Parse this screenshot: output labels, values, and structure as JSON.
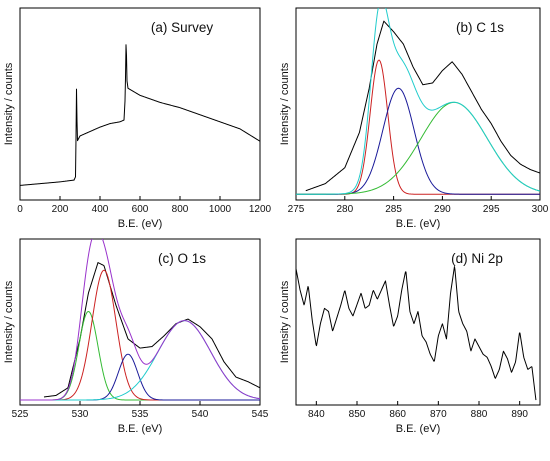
{
  "chart_data": [
    {
      "type": "line",
      "title": "(a) Survey",
      "xlabel": "B.E. (eV)",
      "ylabel": "Intensity / counts",
      "xlim": [
        0,
        1200
      ],
      "xticks": [
        0,
        200,
        400,
        600,
        800,
        1000,
        1200
      ],
      "ylim": [
        0,
        100
      ],
      "yticks_shown": false,
      "series": [
        {
          "color": "#000000",
          "points": [
            [
              0,
              5
            ],
            [
              100,
              6
            ],
            [
              200,
              7
            ],
            [
              270,
              8
            ],
            [
              278,
              10
            ],
            [
              283,
              65
            ],
            [
              286,
              30
            ],
            [
              300,
              33
            ],
            [
              340,
              35
            ],
            [
              400,
              38
            ],
            [
              450,
              40
            ],
            [
              500,
              41
            ],
            [
              520,
              42
            ],
            [
              526,
              55
            ],
            [
              531,
              92
            ],
            [
              534,
              65
            ],
            [
              540,
              60
            ],
            [
              600,
              56
            ],
            [
              700,
              52
            ],
            [
              800,
              49
            ],
            [
              900,
              45
            ],
            [
              1000,
              41
            ],
            [
              1100,
              37
            ],
            [
              1200,
              30
            ]
          ]
        }
      ]
    },
    {
      "type": "line",
      "title": "(b) C 1s",
      "xlabel": "B.E. (eV)",
      "ylabel": "Intensity / counts",
      "xlim": [
        275,
        300
      ],
      "xticks": [
        275,
        280,
        285,
        290,
        295,
        300
      ],
      "ylim": [
        0,
        100
      ],
      "yticks_shown": false,
      "series": [
        {
          "color": "#000000",
          "points": [
            [
              276,
              2
            ],
            [
              278,
              6
            ],
            [
              280,
              15
            ],
            [
              281.5,
              35
            ],
            [
              282.5,
              60
            ],
            [
              283.3,
              85
            ],
            [
              284,
              98
            ],
            [
              285,
              92
            ],
            [
              286,
              85
            ],
            [
              287,
              72
            ],
            [
              288,
              62
            ],
            [
              289,
              63
            ],
            [
              290,
              70
            ],
            [
              291,
              75
            ],
            [
              292,
              68
            ],
            [
              293,
              58
            ],
            [
              294,
              48
            ],
            [
              295,
              40
            ],
            [
              296,
              30
            ],
            [
              297,
              22
            ],
            [
              298,
              17
            ],
            [
              299,
              14
            ],
            [
              300,
              12
            ]
          ]
        },
        {
          "color": "#cc2222",
          "components": {
            "center": 283.5,
            "width": 0.9,
            "height": 76
          }
        },
        {
          "color": "#1a1a99",
          "components": {
            "center": 285.5,
            "width": 1.6,
            "height": 60
          }
        },
        {
          "color": "#33bb33",
          "components": {
            "center": 291.2,
            "width": 3.4,
            "height": 52
          }
        },
        {
          "color": "#22cccc",
          "components": {
            "sum": true
          }
        }
      ]
    },
    {
      "type": "line",
      "title": "(c) O 1s",
      "xlabel": "B.E. (eV)",
      "ylabel": "Intensity / counts",
      "xlim": [
        525,
        545
      ],
      "xticks": [
        525,
        530,
        535,
        540,
        545
      ],
      "ylim": [
        0,
        100
      ],
      "yticks_shown": false,
      "series": [
        {
          "color": "#000000",
          "points": [
            [
              527,
              2
            ],
            [
              528,
              3
            ],
            [
              529,
              8
            ],
            [
              530,
              40
            ],
            [
              530.7,
              70
            ],
            [
              531.5,
              90
            ],
            [
              532,
              88
            ],
            [
              533,
              62
            ],
            [
              534,
              40
            ],
            [
              535,
              34
            ],
            [
              536,
              35
            ],
            [
              537,
              42
            ],
            [
              538,
              50
            ],
            [
              539,
              53
            ],
            [
              540,
              48
            ],
            [
              541,
              40
            ],
            [
              542,
              25
            ],
            [
              543,
              15
            ],
            [
              544,
              12
            ],
            [
              545,
              8
            ]
          ]
        },
        {
          "color": "#33bb33",
          "components": {
            "center": 530.7,
            "width": 0.8,
            "height": 58
          }
        },
        {
          "color": "#cc2222",
          "components": {
            "center": 532.0,
            "width": 1.0,
            "height": 85
          }
        },
        {
          "color": "#1a1a99",
          "components": {
            "center": 534.0,
            "width": 0.8,
            "height": 30
          }
        },
        {
          "color": "#22cccc",
          "components": {
            "center": 538.7,
            "width": 2.2,
            "height": 52
          }
        },
        {
          "color": "#9933cc",
          "components": {
            "sum": true
          }
        }
      ]
    },
    {
      "type": "line",
      "title": "(d) Ni 2p",
      "xlabel": "B.E. (eV)",
      "ylabel": "Intensity / counts",
      "xlim": [
        835,
        895
      ],
      "xticks": [
        840,
        850,
        860,
        870,
        880,
        890
      ],
      "ylim": [
        0,
        100
      ],
      "yticks_shown": false,
      "series": [
        {
          "color": "#000000",
          "points": [
            [
              835,
              86
            ],
            [
              836,
              72
            ],
            [
              837,
              62
            ],
            [
              838,
              75
            ],
            [
              839,
              52
            ],
            [
              840,
              35
            ],
            [
              841,
              50
            ],
            [
              842,
              60
            ],
            [
              843,
              58
            ],
            [
              844,
              45
            ],
            [
              846,
              62
            ],
            [
              847,
              72
            ],
            [
              848,
              60
            ],
            [
              849,
              55
            ],
            [
              851,
              70
            ],
            [
              852,
              60
            ],
            [
              853,
              62
            ],
            [
              854,
              72
            ],
            [
              855,
              66
            ],
            [
              857,
              78
            ],
            [
              858,
              62
            ],
            [
              859,
              48
            ],
            [
              860,
              55
            ],
            [
              861,
              72
            ],
            [
              862,
              85
            ],
            [
              863,
              58
            ],
            [
              864,
              50
            ],
            [
              865,
              58
            ],
            [
              866,
              42
            ],
            [
              867,
              38
            ],
            [
              868,
              30
            ],
            [
              869,
              25
            ],
            [
              870,
              42
            ],
            [
              871,
              50
            ],
            [
              872,
              40
            ],
            [
              873,
              70
            ],
            [
              874,
              88
            ],
            [
              875,
              58
            ],
            [
              876,
              50
            ],
            [
              877,
              45
            ],
            [
              878,
              32
            ],
            [
              879,
              40
            ],
            [
              880,
              35
            ],
            [
              881,
              30
            ],
            [
              882,
              28
            ],
            [
              883,
              22
            ],
            [
              884,
              14
            ],
            [
              885,
              20
            ],
            [
              886,
              32
            ],
            [
              887,
              27
            ],
            [
              888,
              18
            ],
            [
              889,
              25
            ],
            [
              890,
              45
            ],
            [
              891,
              28
            ],
            [
              892,
              20
            ],
            [
              893,
              22
            ],
            [
              894,
              0
            ]
          ]
        }
      ]
    }
  ]
}
